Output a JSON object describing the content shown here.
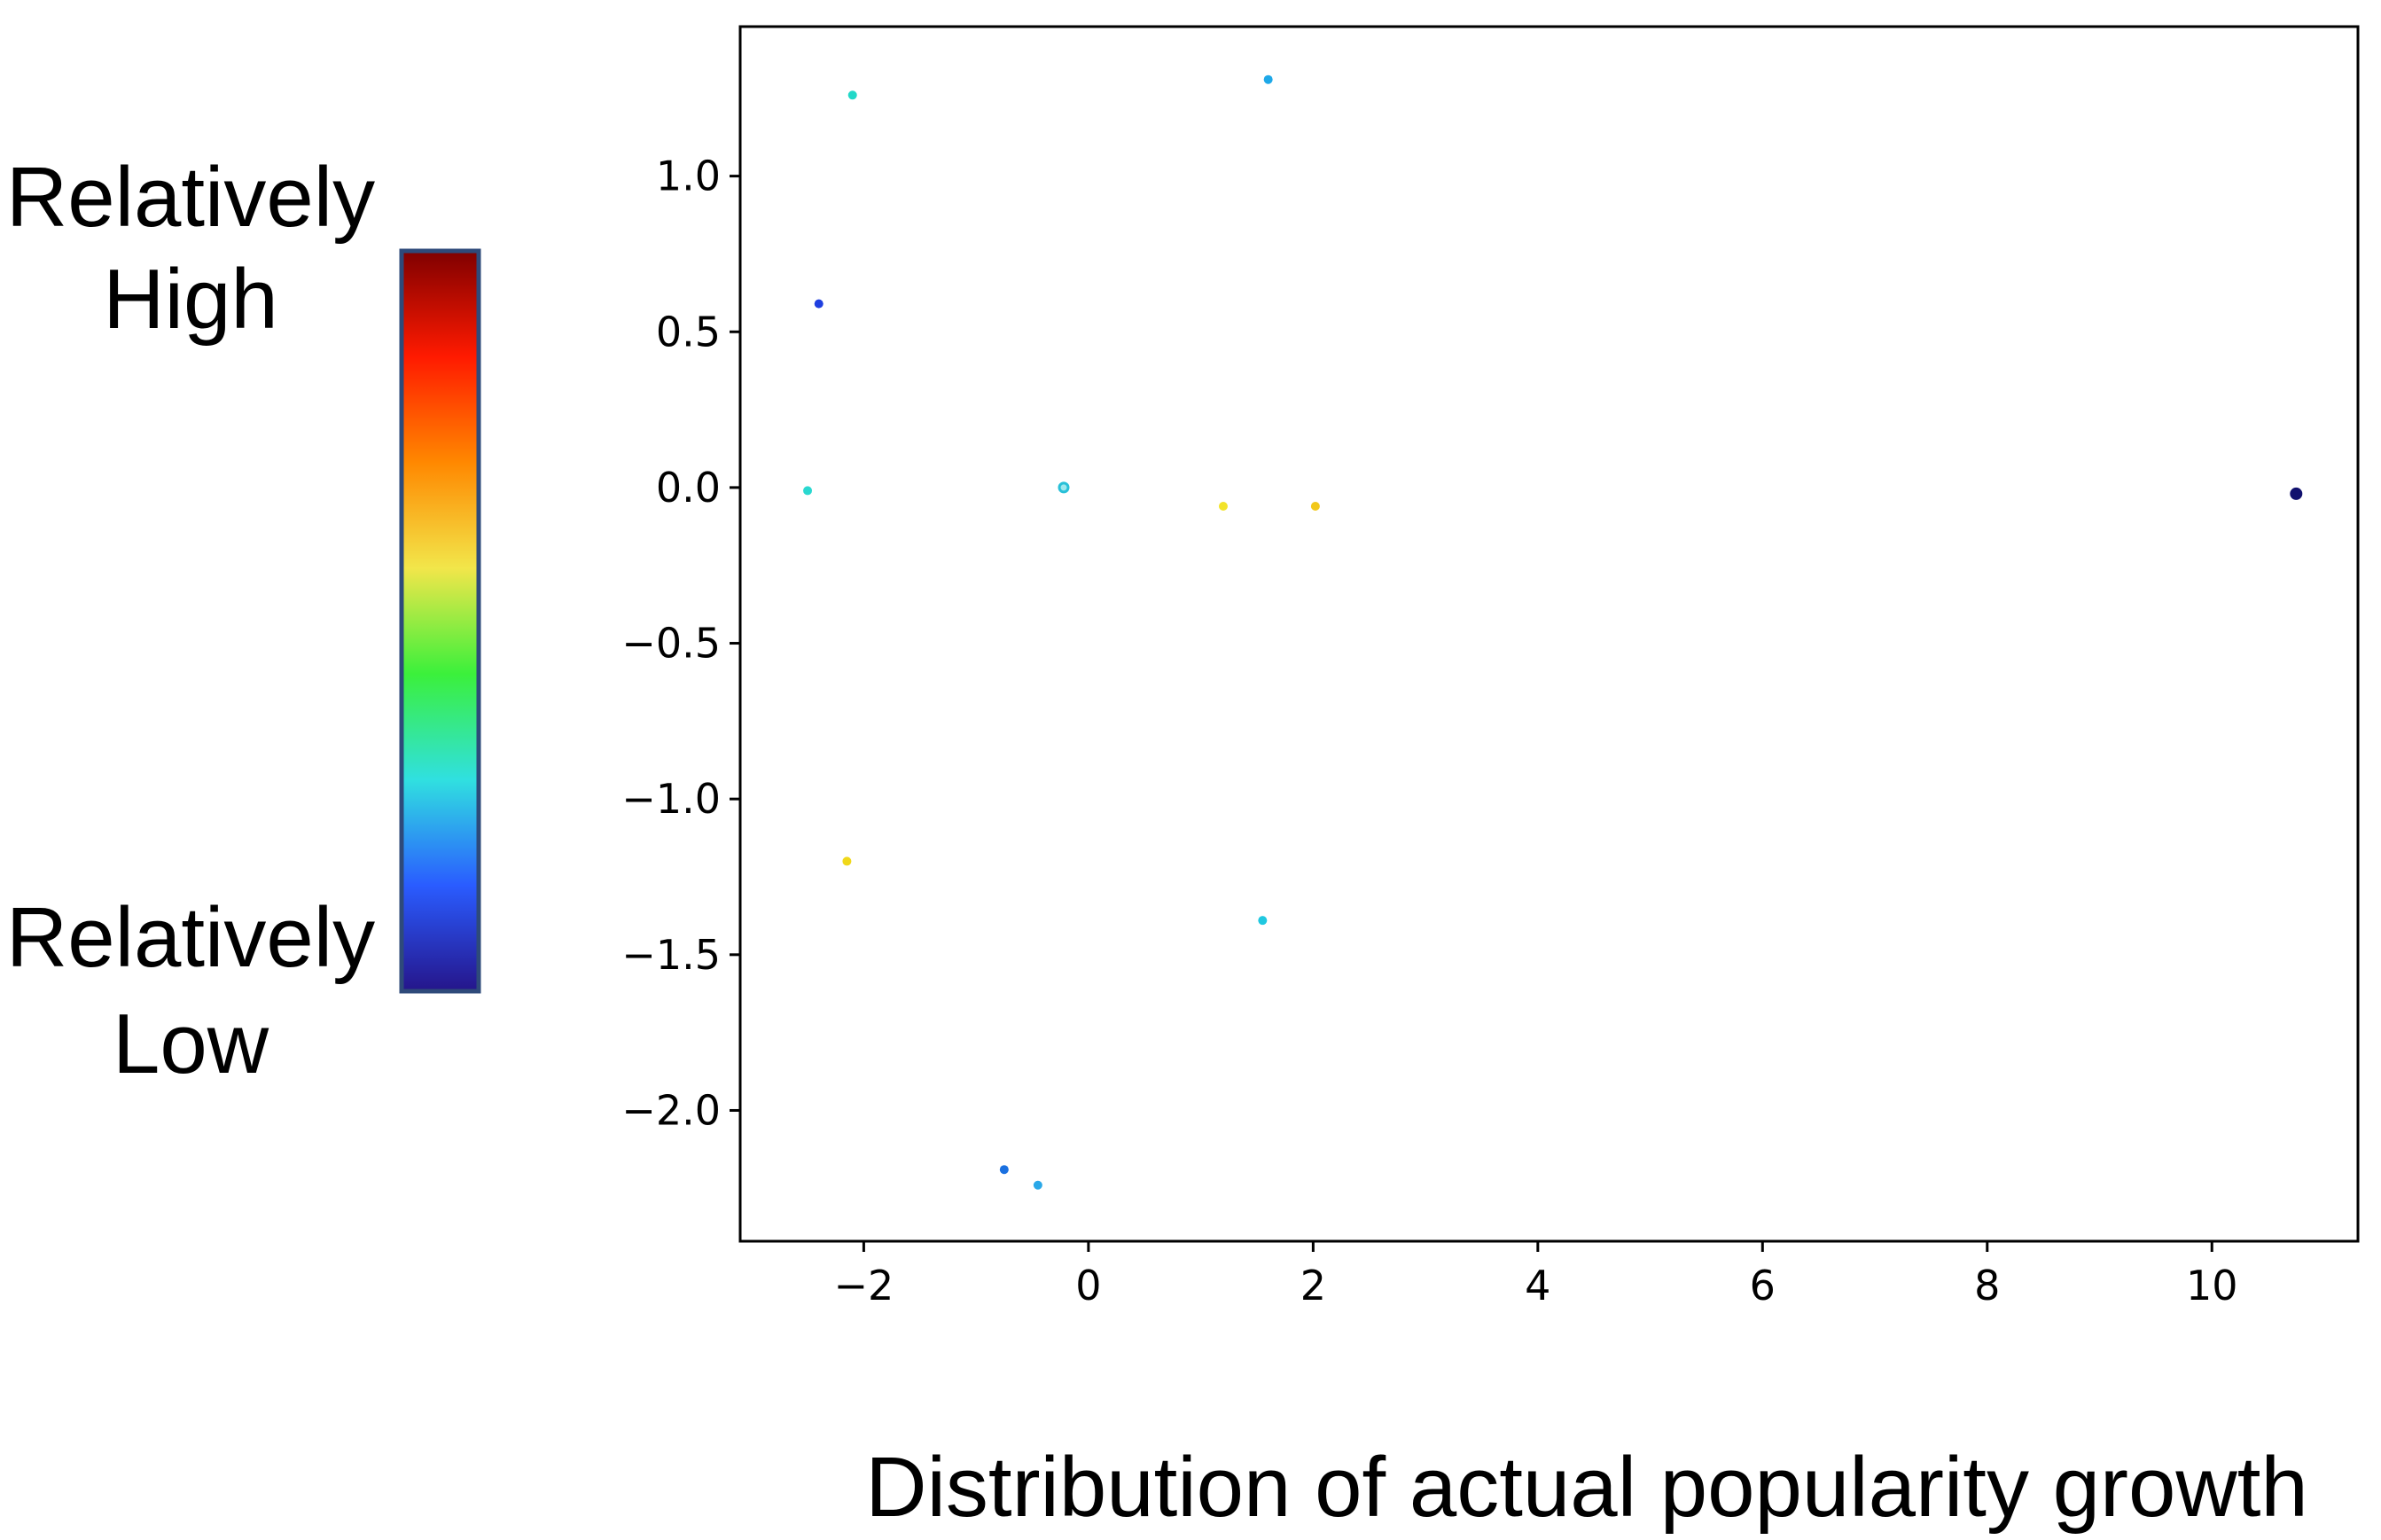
{
  "legend": {
    "high_line1": "Relatively",
    "high_line2": "High",
    "low_line1": "Relatively",
    "low_line2": "Low",
    "colormap": [
      "#7f0000",
      "#ff1a00",
      "#ff8800",
      "#f2e64a",
      "#3bf03b",
      "#30e0e0",
      "#2a5cff",
      "#25158a"
    ],
    "border_color": "#2e4a7a"
  },
  "caption": "Distribution of actual popularity growth",
  "chart_data": {
    "type": "scatter",
    "title": "",
    "xlabel": "",
    "ylabel": "",
    "xlim": [
      -3.1,
      11.3
    ],
    "ylim": [
      -2.42,
      1.48
    ],
    "xticks": [
      -2,
      0,
      2,
      4,
      6,
      8,
      10
    ],
    "yticks": [
      1.0,
      0.5,
      0.0,
      -0.5,
      -1.0,
      -1.5,
      -2.0
    ],
    "xtick_labels": [
      "−2",
      "0",
      "2",
      "4",
      "6",
      "8",
      "10"
    ],
    "ytick_labels": [
      "1.0",
      "0.5",
      "0.0",
      "−0.5",
      "−1.0",
      "−1.5",
      "−2.0"
    ],
    "grid": false,
    "points": [
      {
        "x": -2.1,
        "y": 1.26,
        "color": "#22d8c8"
      },
      {
        "x": 1.6,
        "y": 1.31,
        "color": "#1ea8e8"
      },
      {
        "x": -2.4,
        "y": 0.59,
        "color": "#1f3fe0"
      },
      {
        "x": -2.5,
        "y": -0.01,
        "color": "#2ad8d0"
      },
      {
        "x": -0.22,
        "y": 0.0,
        "color": "#28c0d8",
        "hollow": true
      },
      {
        "x": 1.2,
        "y": -0.06,
        "color": "#f2e32a"
      },
      {
        "x": 2.02,
        "y": -0.06,
        "color": "#f2c81a"
      },
      {
        "x": 10.75,
        "y": -0.02,
        "color": "#10106e",
        "large": true
      },
      {
        "x": -2.15,
        "y": -1.2,
        "color": "#f0d81a"
      },
      {
        "x": 1.55,
        "y": -1.39,
        "color": "#20c8e0"
      },
      {
        "x": -0.75,
        "y": -2.19,
        "color": "#1a70e0"
      },
      {
        "x": -0.45,
        "y": -2.24,
        "color": "#2aa8e8"
      }
    ]
  }
}
